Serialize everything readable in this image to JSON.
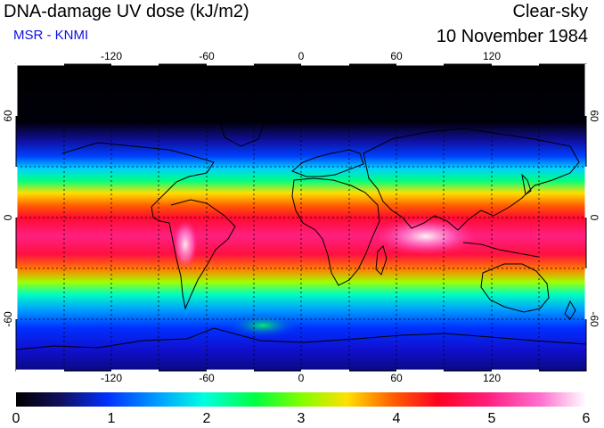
{
  "header": {
    "title": "DNA-damage UV dose (kJ/m2)",
    "subtitle": "MSR - KNMI",
    "condition": "Clear-sky",
    "date": "10 November 1984"
  },
  "map": {
    "lon_ticks": [
      "-120",
      "-60",
      "0",
      "60",
      "120"
    ],
    "lat_ticks": [
      "60",
      "0",
      "-60"
    ],
    "lat_ticks_right": [
      "60",
      "0",
      "-60"
    ]
  },
  "colorbar": {
    "ticks": [
      "0",
      "1",
      "2",
      "3",
      "4",
      "5",
      "6"
    ],
    "min": 0,
    "max": 6,
    "units": "kJ/m2"
  },
  "colors": {
    "subtitle": "#1010e0",
    "ocean_dark": "#000000",
    "peak": "#ffffff"
  }
}
